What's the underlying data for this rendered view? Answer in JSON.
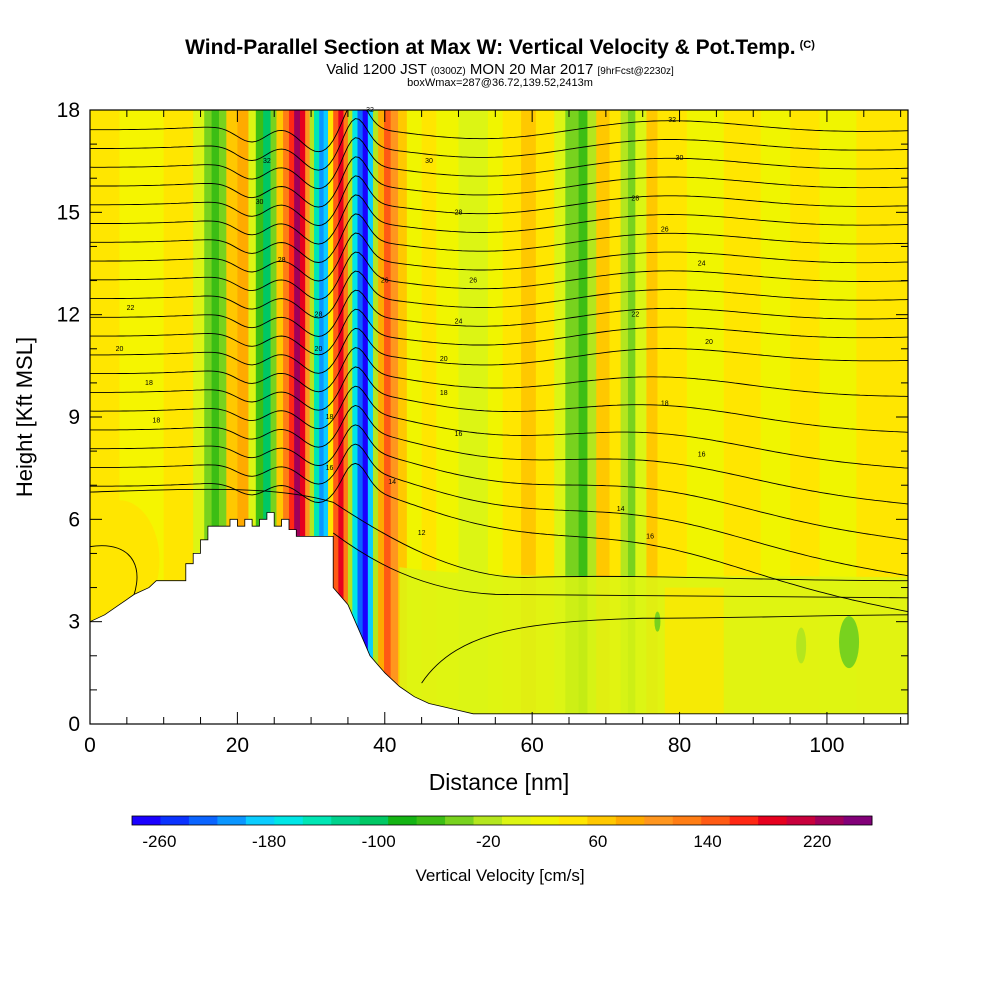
{
  "header": {
    "title": "Wind-Parallel Section at Max W: Vertical Velocity & Pot.Temp.",
    "title_tag": "(C)",
    "valid_prefix": "Valid 1200 JST",
    "valid_utc": "(0300Z)",
    "valid_date": "MON 20 Mar 2017",
    "forecast": "[9hrFcst@2230z]",
    "box_info": "boxWmax=287@36.72,139.52,2413m"
  },
  "chart_data": {
    "type": "heatmap",
    "xlabel": "Distance [nm]",
    "ylabel": "Height [Kft MSL]",
    "xlim": [
      0,
      111
    ],
    "ylim": [
      0,
      18
    ],
    "x_ticks": [
      0,
      20,
      40,
      60,
      80,
      100
    ],
    "y_ticks": [
      0,
      3,
      6,
      9,
      12,
      15,
      18
    ],
    "colorbar": {
      "label": "Vertical Velocity [cm/s]",
      "range": [
        -280,
        260
      ],
      "tick_labels": [
        -260,
        -180,
        -100,
        -20,
        60,
        140,
        220
      ],
      "colors": [
        "#1a00ff",
        "#0a32ff",
        "#0a64ff",
        "#0a96ff",
        "#0acdff",
        "#00e6e6",
        "#00e6b4",
        "#00d28c",
        "#00c864",
        "#14b414",
        "#3cbe14",
        "#78d21e",
        "#b4e61e",
        "#dcf514",
        "#f0f500",
        "#ffe600",
        "#ffc800",
        "#ffaa00",
        "#ff961e",
        "#ff7d14",
        "#ff5a14",
        "#ff2814",
        "#e6001e",
        "#c8003c",
        "#a0005a",
        "#820078"
      ]
    },
    "updrafts_max": [
      {
        "x": 28,
        "w": 240
      },
      {
        "x": 33,
        "w": 200
      },
      {
        "x": 40,
        "w": 120
      }
    ],
    "downdrafts_min": [
      {
        "x": 31,
        "w": -260
      },
      {
        "x": 37,
        "w": -240
      }
    ],
    "terrain_kft": [
      [
        0,
        3
      ],
      [
        2,
        3.2
      ],
      [
        4,
        3.5
      ],
      [
        6,
        3.8
      ],
      [
        8,
        4.0
      ],
      [
        9,
        4.2
      ],
      [
        13,
        4.2
      ],
      [
        13,
        4.7
      ],
      [
        14,
        4.7
      ],
      [
        14,
        5.0
      ],
      [
        15,
        5.0
      ],
      [
        15,
        5.4
      ],
      [
        16,
        5.4
      ],
      [
        16,
        5.8
      ],
      [
        17,
        5.8
      ],
      [
        18,
        5.8
      ],
      [
        18,
        5.8
      ],
      [
        19,
        5.8
      ],
      [
        19,
        6.0
      ],
      [
        20,
        6.0
      ],
      [
        20,
        5.8
      ],
      [
        21,
        5.8
      ],
      [
        21,
        6.0
      ],
      [
        22,
        6.0
      ],
      [
        22,
        5.8
      ],
      [
        23,
        5.8
      ],
      [
        23,
        6.0
      ],
      [
        24,
        6.0
      ],
      [
        24,
        6.2
      ],
      [
        25,
        6.2
      ],
      [
        25,
        5.8
      ],
      [
        26,
        5.8
      ],
      [
        26,
        6.0
      ],
      [
        27,
        6.0
      ],
      [
        27,
        5.7
      ],
      [
        28,
        5.7
      ],
      [
        28,
        5.5
      ],
      [
        31,
        5.5
      ],
      [
        33,
        5.5
      ],
      [
        33,
        4.0
      ],
      [
        35,
        3.5
      ],
      [
        36,
        3.0
      ],
      [
        37,
        2.5
      ],
      [
        38,
        2.0
      ],
      [
        40,
        1.5
      ],
      [
        42,
        1.1
      ],
      [
        44,
        0.8
      ],
      [
        46,
        0.6
      ],
      [
        48,
        0.5
      ],
      [
        50,
        0.4
      ],
      [
        52,
        0.3
      ],
      [
        54,
        0.3
      ],
      [
        111,
        0.3
      ]
    ],
    "contour_labels": [
      "32",
      "30",
      "28",
      "26",
      "24",
      "22",
      "20",
      "18",
      "16",
      "14",
      "12"
    ]
  }
}
